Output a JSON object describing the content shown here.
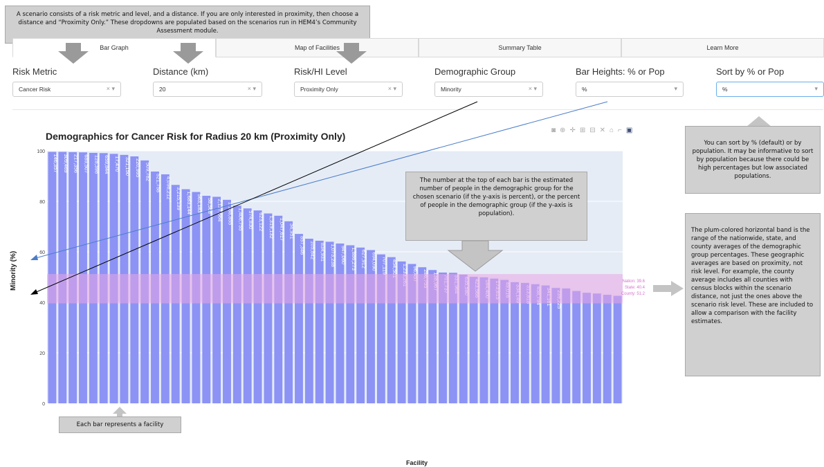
{
  "tabs": [
    {
      "label": "Bar Graph",
      "active": true
    },
    {
      "label": "Map of Facilities",
      "active": false
    },
    {
      "label": "Summary Table",
      "active": false
    },
    {
      "label": "Learn More",
      "active": false
    }
  ],
  "filters": [
    {
      "label": "Risk Metric",
      "value": "Cancer Risk",
      "clearable": true
    },
    {
      "label": "Distance (km)",
      "value": "20",
      "clearable": true
    },
    {
      "label": "Risk/HI Level",
      "value": "Proximity Only",
      "clearable": true
    },
    {
      "label": "Demographic Group",
      "value": "Minority",
      "clearable": true
    },
    {
      "label": "Bar Heights: % or Pop",
      "value": "%",
      "clearable": false
    },
    {
      "label": "Sort by % or Pop",
      "value": "%",
      "clearable": false
    }
  ],
  "callouts": {
    "top": "A scenario consists of a risk metric and level, and a distance. If you are only interested in proximity, then choose a distance and “Proximity Only.” These dropdowns are populated based on the scenarios run in HEM4’s Community Assessment module.",
    "sort": "You can sort by % (default) or by population. It may be informative to sort by population because there could be high percentages but low associated populations.",
    "bar_top": "The number at the top of each bar is the estimated number of people in the demographic group for the chosen scenario (if the y-axis is percent), or the percent of people in the demographic group (if the y-axis is population).",
    "band": "The plum-colored horizontal band is the range of the nationwide, state, and county averages of the demographic group percentages. These geographic averages are based on proximity, not risk level. For example, the county average includes all counties with census blocks within the scenario distance, not just the ones above the scenario risk level. These are included to allow a comparison with the facility estimates.",
    "bar": "Each bar represents a facility"
  },
  "modebar_icons": [
    "camera-icon",
    "zoom-icon",
    "pan-icon",
    "zoom-in-icon",
    "zoom-out-icon",
    "autoscale-icon",
    "home-icon",
    "spike-icon",
    "plotly-logo-icon"
  ],
  "chart_data": {
    "type": "bar",
    "title": "Demographics for Cancer Risk for Radius 20 km (Proximity Only)",
    "xlabel": "Facility",
    "ylabel": "Minority (%)",
    "ylim": [
      0,
      100
    ],
    "yticks": [
      0,
      20,
      40,
      60,
      80,
      100
    ],
    "bar_color": "#8c93f5",
    "band_color": "#e9a6e3",
    "values": [
      99.6,
      99.6,
      99.5,
      99.4,
      99.2,
      99.1,
      98.8,
      98.4,
      97.8,
      96.2,
      91.8,
      90.7,
      86.5,
      84.8,
      83.7,
      82.2,
      81.8,
      80.6,
      78.3,
      77.2,
      76.4,
      75.2,
      74.3,
      72.1,
      67.1,
      65.2,
      64.4,
      64.0,
      63.3,
      62.6,
      61.7,
      60.7,
      59.0,
      57.9,
      56.2,
      55.2,
      53.9,
      52.8,
      51.8,
      51.7,
      51.0,
      50.1,
      49.9,
      49.4,
      48.9,
      48.0,
      47.7,
      47.2,
      46.7,
      45.7,
      45.5,
      44.5,
      43.8,
      43.5,
      43.0,
      42.6
    ],
    "labels": [
      "146,357",
      "309,469",
      "217,356",
      "689,507",
      "128,398",
      "659,844",
      "17,470",
      "321,150",
      "220,995",
      "509,782",
      "521,758",
      "4,098,212",
      "3,215,139",
      "1,683,144",
      "563,183",
      "58,568",
      "2,117,664",
      "1,188,855",
      "1,406,755",
      "574,830",
      "623,122",
      "1,319,132",
      "1,047,617",
      "34,951",
      "857,346",
      "105,842",
      "834,931",
      "1,073,238",
      "947,060",
      "1,886,273",
      "627,912",
      "694,090",
      "707,119",
      "454,501",
      "1,233,261",
      "96,457",
      "286,755",
      "138,967",
      "701,737",
      "531,964",
      "635,580",
      "423,566",
      "184,400",
      "173,615",
      "49,016",
      "334,149",
      "313,818",
      "458,794",
      "341,161",
      "239,225",
      "",
      "",
      "",
      "",
      "",
      ""
    ],
    "band": {
      "nation": 39.6,
      "state": 40.4,
      "county": 51.2
    },
    "band_labels": [
      "Nation: 39.6",
      "State: 40.4",
      "County: 51.2"
    ]
  }
}
